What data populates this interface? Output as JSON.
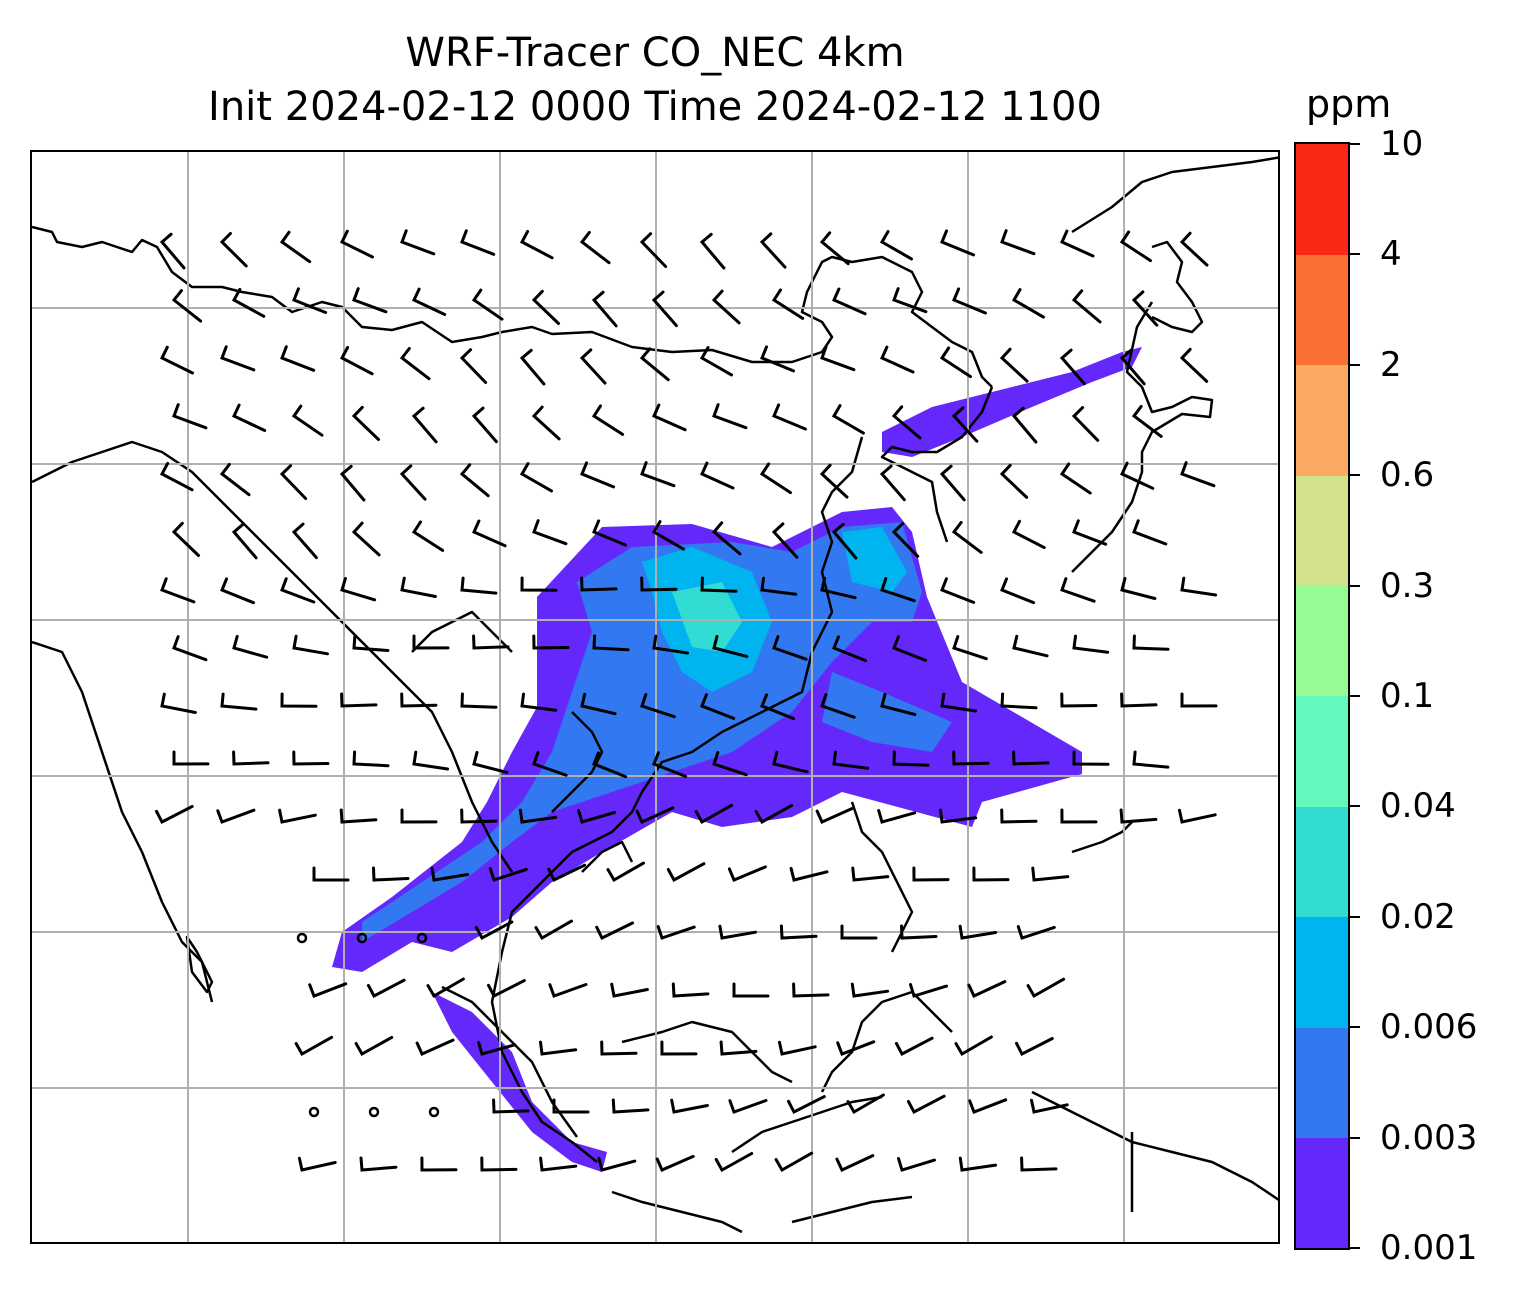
{
  "title": {
    "line1": "WRF-Tracer CO_NEC 4km",
    "line2": "Init 2024-02-12 0000 Time 2024-02-12 1100"
  },
  "colorbar": {
    "unit": "ppm",
    "levels": [
      "0.001",
      "0.003",
      "0.006",
      "0.02",
      "0.04",
      "0.1",
      "0.3",
      "0.6",
      "2",
      "4",
      "10"
    ],
    "colors": [
      "#6428fa",
      "#3278f0",
      "#00b4f0",
      "#32dcd2",
      "#64fabe",
      "#96fa96",
      "#d2e18c",
      "#faaa64",
      "#fa7032",
      "#fa2814"
    ]
  },
  "map": {
    "gridlines": true,
    "coastlines": true,
    "wind_barbs": true
  }
}
